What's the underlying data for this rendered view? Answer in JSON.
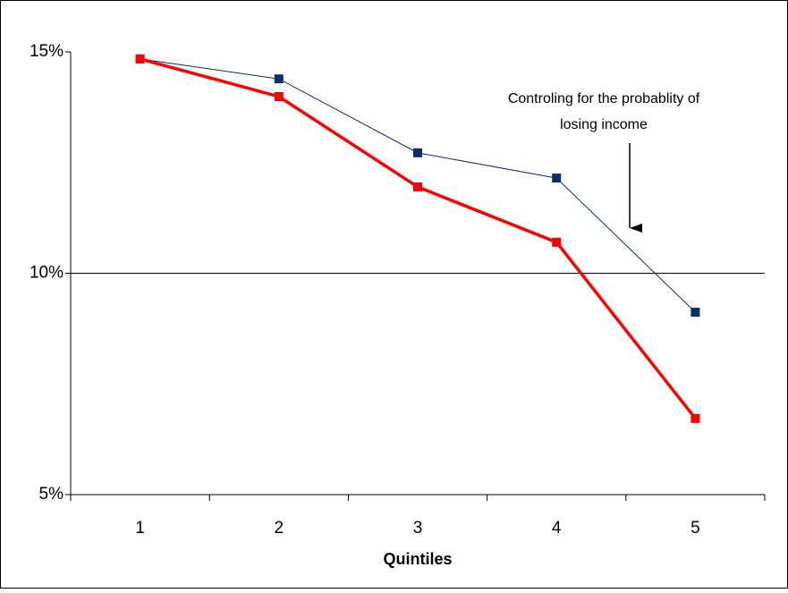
{
  "chart_data": {
    "type": "line",
    "x_label": "Quintiles",
    "annotation": [
      "Controling for the probablity of",
      "losing income"
    ],
    "categories": [
      "1",
      "2",
      "3",
      "4",
      "5"
    ],
    "series": [
      {
        "color": "#0a2f6b",
        "values": [
          14.84,
          14.39,
          12.72,
          12.15,
          9.12
        ]
      },
      {
        "color": "#ff0000",
        "values": [
          14.84,
          13.99,
          11.95,
          10.7,
          6.72
        ]
      }
    ],
    "ylim": [
      5,
      15
    ],
    "yticks": [
      {
        "value": 5,
        "label": "5%"
      },
      {
        "value": 10,
        "label": "10%"
      },
      {
        "value": 15,
        "label": "15%"
      }
    ],
    "grid": true
  }
}
